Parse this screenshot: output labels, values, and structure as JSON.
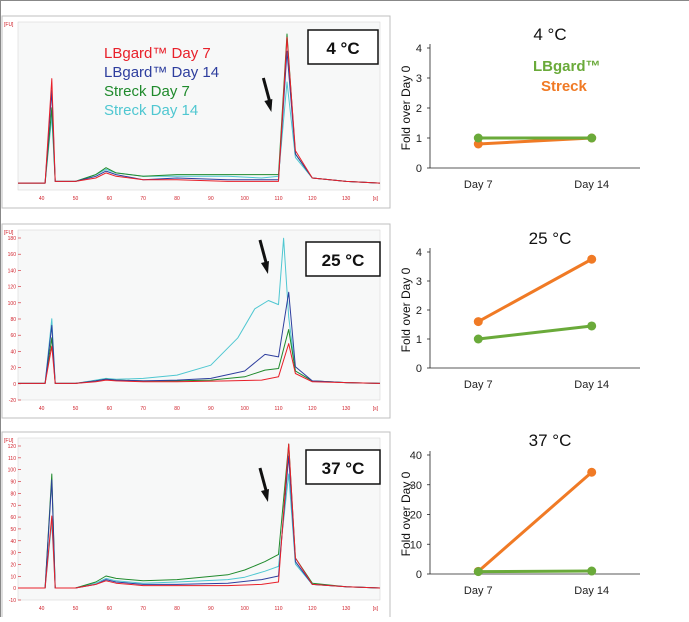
{
  "colors": {
    "lbgard_day7": "#e8202a",
    "lbgard_day14": "#2e3e9e",
    "streck_day7": "#1f8a2c",
    "streck_day14": "#4fc7d1",
    "lbgard_fold": "#6aaa3a",
    "streck_fold": "#f07a25",
    "electro_axis_label": "#d0202a"
  },
  "electropherogram": {
    "y_unit": "[FU]",
    "x_unit": "[s]",
    "x_ticks": [
      "40",
      "50",
      "60",
      "70",
      "80",
      "90",
      "100",
      "110",
      "120",
      "130"
    ],
    "legend": [
      "LBgard™ Day 7",
      "LBgard™ Day 14",
      "Streck Day 7",
      "Streck Day 14"
    ]
  },
  "chart_data": [
    {
      "type": "line",
      "panel": "electropherogram",
      "temperature_label": "4 °C",
      "x_range": [
        33,
        140
      ],
      "y_range": [
        -3,
        95
      ],
      "y_ticks": [],
      "arrow_at": 107,
      "series": [
        {
          "name": "LBgard™ Day 7",
          "key": "lbgard_day7",
          "values": [
            [
              33,
              1
            ],
            [
              41,
              1
            ],
            [
              43,
              62
            ],
            [
              44,
              2
            ],
            [
              50,
              2
            ],
            [
              56,
              4
            ],
            [
              59,
              7
            ],
            [
              62,
              5
            ],
            [
              70,
              3
            ],
            [
              80,
              3
            ],
            [
              95,
              2
            ],
            [
              105,
              2
            ],
            [
              110,
              2
            ],
            [
              112.5,
              86
            ],
            [
              115,
              20
            ],
            [
              120,
              4
            ],
            [
              130,
              2
            ],
            [
              140,
              1
            ]
          ]
        },
        {
          "name": "LBgard™ Day 14",
          "key": "lbgard_day14",
          "values": [
            [
              33,
              1
            ],
            [
              41,
              1
            ],
            [
              43,
              55
            ],
            [
              44,
              2
            ],
            [
              50,
              2
            ],
            [
              56,
              5
            ],
            [
              59,
              8
            ],
            [
              62,
              6
            ],
            [
              70,
              3
            ],
            [
              80,
              4
            ],
            [
              95,
              3
            ],
            [
              105,
              3
            ],
            [
              110,
              3
            ],
            [
              112.5,
              78
            ],
            [
              115,
              18
            ],
            [
              120,
              4
            ],
            [
              130,
              2
            ],
            [
              140,
              1
            ]
          ]
        },
        {
          "name": "Streck Day 7",
          "key": "streck_day7",
          "values": [
            [
              33,
              1
            ],
            [
              41,
              1
            ],
            [
              43,
              45
            ],
            [
              44,
              2
            ],
            [
              50,
              2
            ],
            [
              56,
              6
            ],
            [
              59,
              10
            ],
            [
              62,
              7
            ],
            [
              70,
              5
            ],
            [
              80,
              6
            ],
            [
              95,
              6
            ],
            [
              105,
              6
            ],
            [
              110,
              6
            ],
            [
              112.5,
              88
            ],
            [
              115,
              18
            ],
            [
              120,
              4
            ],
            [
              130,
              2
            ],
            [
              140,
              1
            ]
          ]
        },
        {
          "name": "Streck Day 14",
          "key": "streck_day14",
          "values": [
            [
              33,
              1
            ],
            [
              41,
              1
            ],
            [
              43,
              40
            ],
            [
              44,
              2
            ],
            [
              50,
              2
            ],
            [
              56,
              6
            ],
            [
              59,
              9
            ],
            [
              62,
              7
            ],
            [
              70,
              5
            ],
            [
              80,
              5
            ],
            [
              95,
              5
            ],
            [
              105,
              4
            ],
            [
              110,
              5
            ],
            [
              112.5,
              60
            ],
            [
              115,
              16
            ],
            [
              120,
              4
            ],
            [
              130,
              2
            ],
            [
              140,
              1
            ]
          ]
        }
      ]
    },
    {
      "type": "line",
      "panel": "fold_change",
      "title": "4 °C",
      "categories": [
        "Day 7",
        "Day 14"
      ],
      "ylabel": "Fold over Day 0",
      "ylim": [
        0,
        4
      ],
      "y_ticks": [
        0,
        1,
        2,
        3,
        4
      ],
      "legend": [
        "LBgard™",
        "Streck"
      ],
      "series": [
        {
          "name": "LBgard™",
          "key": "lbgard_fold",
          "values": [
            1.0,
            1.0
          ]
        },
        {
          "name": "Streck",
          "key": "streck_fold",
          "values": [
            0.8,
            1.0
          ]
        }
      ]
    },
    {
      "type": "line",
      "panel": "electropherogram",
      "temperature_label": "25 °C",
      "x_range": [
        33,
        140
      ],
      "y_range": [
        -20,
        185
      ],
      "y_ticks": [
        "-20",
        "0",
        "20",
        "40",
        "60",
        "80",
        "100",
        "120",
        "140",
        "160",
        "180"
      ],
      "arrow_at": 106,
      "series": [
        {
          "name": "LBgard™ Day 7",
          "key": "lbgard_day7",
          "values": [
            [
              33,
              0
            ],
            [
              41,
              0
            ],
            [
              43,
              45
            ],
            [
              44,
              0
            ],
            [
              50,
              0
            ],
            [
              56,
              2
            ],
            [
              59,
              4
            ],
            [
              62,
              3
            ],
            [
              70,
              2
            ],
            [
              80,
              2
            ],
            [
              95,
              3
            ],
            [
              105,
              4
            ],
            [
              110,
              8
            ],
            [
              113,
              48
            ],
            [
              115,
              12
            ],
            [
              120,
              2
            ],
            [
              130,
              1
            ],
            [
              140,
              0
            ]
          ]
        },
        {
          "name": "LBgard™ Day 14",
          "key": "lbgard_day14",
          "values": [
            [
              33,
              0
            ],
            [
              41,
              0
            ],
            [
              43,
              70
            ],
            [
              44,
              0
            ],
            [
              50,
              0
            ],
            [
              56,
              3
            ],
            [
              59,
              5
            ],
            [
              62,
              4
            ],
            [
              70,
              3
            ],
            [
              80,
              4
            ],
            [
              90,
              6
            ],
            [
              100,
              15
            ],
            [
              106,
              35
            ],
            [
              110,
              32
            ],
            [
              113,
              110
            ],
            [
              115,
              20
            ],
            [
              120,
              3
            ],
            [
              130,
              1
            ],
            [
              140,
              0
            ]
          ]
        },
        {
          "name": "Streck Day 7",
          "key": "streck_day7",
          "values": [
            [
              33,
              0
            ],
            [
              41,
              0
            ],
            [
              43,
              55
            ],
            [
              44,
              0
            ],
            [
              50,
              0
            ],
            [
              56,
              3
            ],
            [
              59,
              5
            ],
            [
              62,
              4
            ],
            [
              70,
              3
            ],
            [
              80,
              3
            ],
            [
              90,
              4
            ],
            [
              100,
              8
            ],
            [
              106,
              16
            ],
            [
              110,
              18
            ],
            [
              113,
              65
            ],
            [
              115,
              15
            ],
            [
              120,
              3
            ],
            [
              130,
              1
            ],
            [
              140,
              0
            ]
          ]
        },
        {
          "name": "Streck Day 14",
          "key": "streck_day14",
          "values": [
            [
              33,
              0
            ],
            [
              41,
              0
            ],
            [
              43,
              78
            ],
            [
              44,
              0
            ],
            [
              50,
              0
            ],
            [
              56,
              4
            ],
            [
              59,
              6
            ],
            [
              62,
              5
            ],
            [
              70,
              6
            ],
            [
              80,
              10
            ],
            [
              90,
              22
            ],
            [
              98,
              55
            ],
            [
              103,
              90
            ],
            [
              107,
              100
            ],
            [
              110,
              95
            ],
            [
              111.5,
              175
            ],
            [
              113,
              80
            ],
            [
              115,
              15
            ],
            [
              120,
              3
            ],
            [
              130,
              1
            ],
            [
              140,
              0
            ]
          ]
        }
      ]
    },
    {
      "type": "line",
      "panel": "fold_change",
      "title": "25 °C",
      "categories": [
        "Day 7",
        "Day 14"
      ],
      "ylabel": "Fold over Day 0",
      "ylim": [
        0,
        4
      ],
      "y_ticks": [
        0,
        1,
        2,
        3,
        4
      ],
      "series": [
        {
          "name": "LBgard™",
          "key": "lbgard_fold",
          "values": [
            1.0,
            1.45
          ]
        },
        {
          "name": "Streck",
          "key": "streck_fold",
          "values": [
            1.6,
            3.75
          ]
        }
      ]
    },
    {
      "type": "line",
      "panel": "electropherogram",
      "temperature_label": "37 °C",
      "x_range": [
        33,
        140
      ],
      "y_range": [
        -10,
        125
      ],
      "y_ticks": [
        "-10",
        "0",
        "10",
        "20",
        "30",
        "40",
        "50",
        "60",
        "70",
        "80",
        "90",
        "100",
        "110",
        "120"
      ],
      "arrow_at": 106,
      "series": [
        {
          "name": "LBgard™ Day 7",
          "key": "lbgard_day7",
          "values": [
            [
              33,
              0
            ],
            [
              41,
              0
            ],
            [
              43,
              60
            ],
            [
              44,
              0
            ],
            [
              50,
              0
            ],
            [
              56,
              3
            ],
            [
              59,
              6
            ],
            [
              62,
              4
            ],
            [
              70,
              2
            ],
            [
              80,
              2
            ],
            [
              95,
              2
            ],
            [
              105,
              3
            ],
            [
              110,
              5
            ],
            [
              113,
              120
            ],
            [
              115,
              25
            ],
            [
              120,
              3
            ],
            [
              130,
              1
            ],
            [
              140,
              0
            ]
          ]
        },
        {
          "name": "LBgard™ Day 14",
          "key": "lbgard_day14",
          "values": [
            [
              33,
              0
            ],
            [
              41,
              0
            ],
            [
              43,
              90
            ],
            [
              44,
              0
            ],
            [
              50,
              0
            ],
            [
              56,
              3
            ],
            [
              59,
              7
            ],
            [
              62,
              5
            ],
            [
              70,
              3
            ],
            [
              80,
              3
            ],
            [
              95,
              4
            ],
            [
              105,
              7
            ],
            [
              110,
              10
            ],
            [
              113,
              110
            ],
            [
              115,
              22
            ],
            [
              120,
              3
            ],
            [
              130,
              1
            ],
            [
              140,
              0
            ]
          ]
        },
        {
          "name": "Streck Day 7",
          "key": "streck_day7",
          "values": [
            [
              33,
              0
            ],
            [
              41,
              0
            ],
            [
              43,
              95
            ],
            [
              44,
              0
            ],
            [
              50,
              0
            ],
            [
              56,
              5
            ],
            [
              59,
              10
            ],
            [
              62,
              8
            ],
            [
              70,
              6
            ],
            [
              80,
              7
            ],
            [
              95,
              11
            ],
            [
              100,
              15
            ],
            [
              106,
              22
            ],
            [
              110,
              28
            ],
            [
              113,
              120
            ],
            [
              115,
              25
            ],
            [
              120,
              4
            ],
            [
              130,
              1
            ],
            [
              140,
              0
            ]
          ]
        },
        {
          "name": "Streck Day 14",
          "key": "streck_day14",
          "values": [
            [
              33,
              0
            ],
            [
              41,
              0
            ],
            [
              43,
              55
            ],
            [
              44,
              0
            ],
            [
              50,
              0
            ],
            [
              56,
              4
            ],
            [
              59,
              8
            ],
            [
              62,
              6
            ],
            [
              70,
              4
            ],
            [
              80,
              5
            ],
            [
              95,
              7
            ],
            [
              100,
              9
            ],
            [
              106,
              14
            ],
            [
              110,
              18
            ],
            [
              113,
              95
            ],
            [
              115,
              20
            ],
            [
              120,
              3
            ],
            [
              130,
              1
            ],
            [
              140,
              0
            ]
          ]
        }
      ]
    },
    {
      "type": "line",
      "panel": "fold_change",
      "title": "37 °C",
      "categories": [
        "Day 7",
        "Day 14"
      ],
      "ylabel": "Fold over Day 0",
      "ylim": [
        0,
        40
      ],
      "y_ticks": [
        0,
        10,
        20,
        30,
        40
      ],
      "series": [
        {
          "name": "LBgard™",
          "key": "lbgard_fold",
          "values": [
            0.8,
            1.0
          ]
        },
        {
          "name": "Streck",
          "key": "streck_fold",
          "values": [
            0.9,
            34.2
          ]
        }
      ]
    }
  ]
}
